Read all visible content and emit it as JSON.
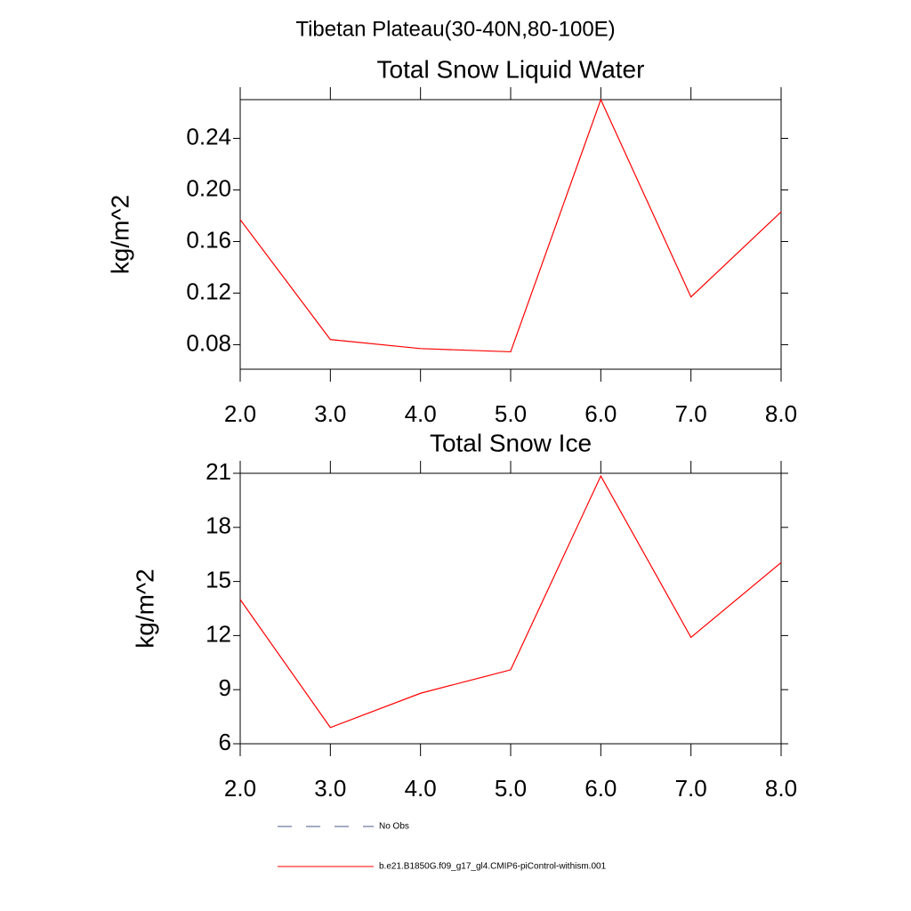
{
  "title": "Tibetan Plateau(30-40N,80-100E)",
  "legend": [
    {
      "name": "No Obs",
      "color": "#4a5a8a",
      "dashed": true
    },
    {
      "name": "b.e21.B1850G.f09_g17_gl4.CMIP6-piControl-withism.001",
      "color": "#ff0000",
      "dashed": false
    }
  ],
  "chart_data": [
    {
      "type": "line",
      "title": "Total Snow Liquid Water",
      "y_label": "kg/m^2",
      "x": [
        2,
        3,
        4,
        5,
        6,
        7,
        8
      ],
      "xlim": [
        2,
        8
      ],
      "xticks": [
        {
          "value": 2,
          "label": "2.0"
        },
        {
          "value": 3,
          "label": "3.0"
        },
        {
          "value": 4,
          "label": "4.0"
        },
        {
          "value": 5,
          "label": "5.0"
        },
        {
          "value": 6,
          "label": "6.0"
        },
        {
          "value": 7,
          "label": "7.0"
        },
        {
          "value": 8,
          "label": "8.0"
        }
      ],
      "ylim": [
        0.061,
        0.27
      ],
      "yticks": [
        0.08,
        0.12,
        0.16,
        {
          "value": 0.2,
          "label": "0.20"
        },
        0.24
      ],
      "series": [
        {
          "color": "#ff0000",
          "values": [
            0.177,
            0.084,
            0.077,
            0.0745,
            0.27,
            0.117,
            0.183
          ]
        }
      ]
    },
    {
      "type": "line",
      "title": "Total Snow Ice",
      "y_label": "kg/m^2",
      "x": [
        2,
        3,
        4,
        5,
        6,
        7,
        8
      ],
      "xlim": [
        2,
        8
      ],
      "xticks": [
        {
          "value": 2,
          "label": "2.0"
        },
        {
          "value": 3,
          "label": "3.0"
        },
        {
          "value": 4,
          "label": "4.0"
        },
        {
          "value": 5,
          "label": "5.0"
        },
        {
          "value": 6,
          "label": "6.0"
        },
        {
          "value": 7,
          "label": "7.0"
        },
        {
          "value": 8,
          "label": "8.0"
        }
      ],
      "ylim": [
        6,
        21
      ],
      "yticks": [
        6,
        9,
        12,
        15,
        18,
        21
      ],
      "series": [
        {
          "color": "#ff0000",
          "values": [
            14.0,
            6.9,
            8.8,
            10.1,
            20.85,
            11.9,
            16.05
          ]
        }
      ]
    }
  ]
}
